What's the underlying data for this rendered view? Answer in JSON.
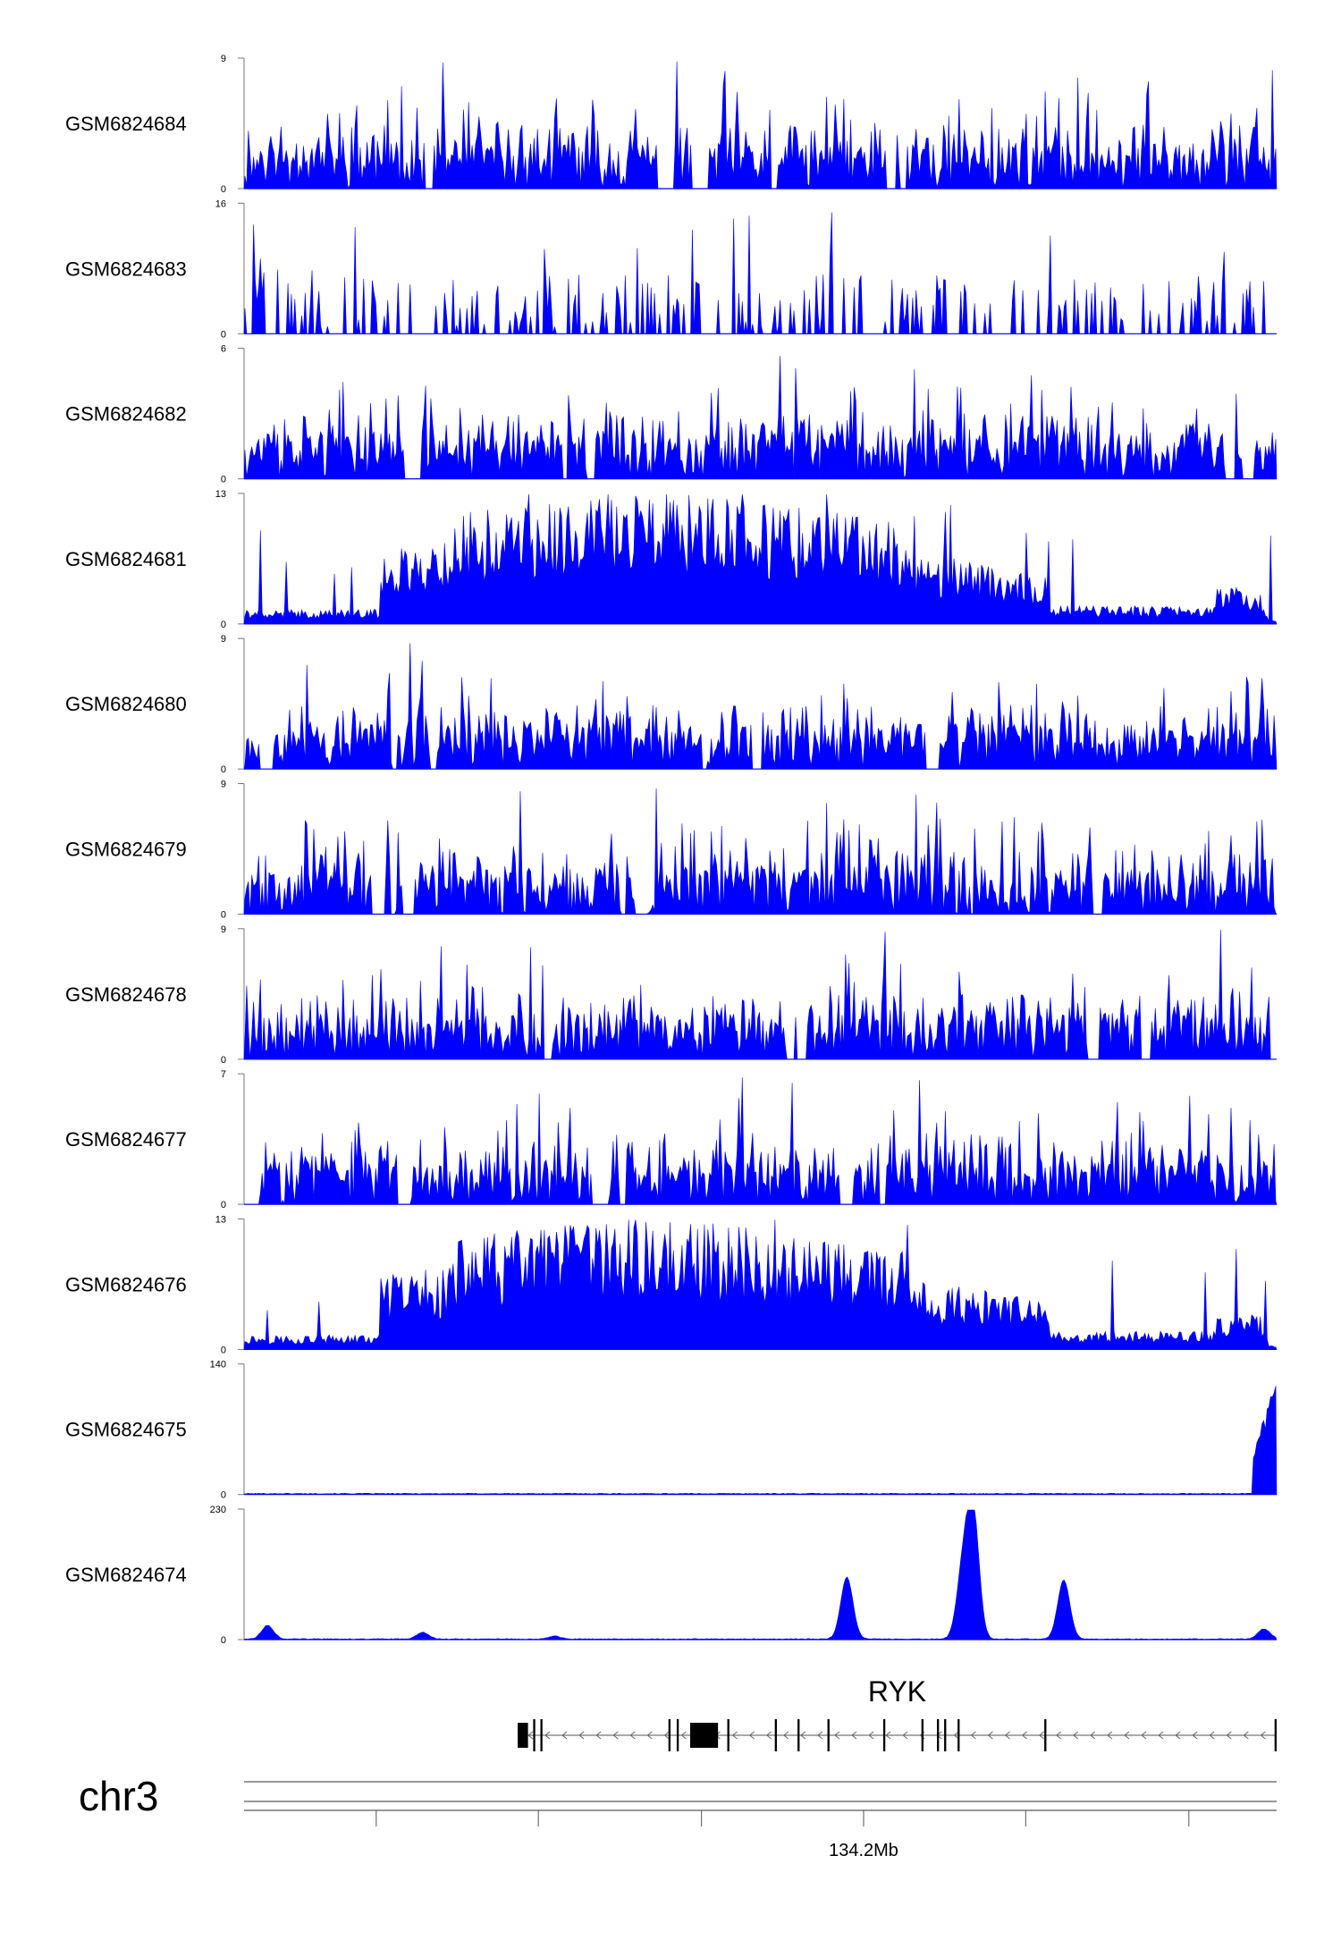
{
  "chart_data": {
    "type": "area",
    "chromosome": "chr3",
    "color": "#0000ff",
    "region_note": "coverage tracks over the RYK locus",
    "tracks": [
      {
        "name": "GSM6824684",
        "ymax": 9,
        "ymin": 0,
        "profile": "noisy",
        "seed": 11
      },
      {
        "name": "GSM6824683",
        "ymax": 16,
        "ymin": 0,
        "profile": "sparse",
        "seed": 23
      },
      {
        "name": "GSM6824682",
        "ymax": 6,
        "ymin": 0,
        "profile": "noisy",
        "seed": 37
      },
      {
        "name": "GSM6824681",
        "ymax": 13,
        "ymin": 0,
        "profile": "broad",
        "seed": 41
      },
      {
        "name": "GSM6824680",
        "ymax": 9,
        "ymin": 0,
        "profile": "noisy",
        "seed": 53
      },
      {
        "name": "GSM6824679",
        "ymax": 9,
        "ymin": 0,
        "profile": "noisy",
        "seed": 67
      },
      {
        "name": "GSM6824678",
        "ymax": 9,
        "ymin": 0,
        "profile": "noisy",
        "seed": 79
      },
      {
        "name": "GSM6824677",
        "ymax": 7,
        "ymin": 0,
        "profile": "noisy",
        "seed": 83
      },
      {
        "name": "GSM6824676",
        "ymax": 13,
        "ymin": 0,
        "profile": "broad",
        "seed": 97
      },
      {
        "name": "GSM6824675",
        "ymax": 140,
        "ymin": 0,
        "profile": "endpeak",
        "seed": 101
      },
      {
        "name": "GSM6824674",
        "ymax": 230,
        "ymin": 0,
        "profile": "peaks",
        "seed": 113,
        "peaks": [
          [
            0.022,
            24
          ],
          [
            0.172,
            12
          ],
          [
            0.3,
            5
          ],
          [
            0.583,
            110
          ],
          [
            0.695,
            115
          ],
          [
            0.705,
            230
          ],
          [
            0.793,
            105
          ],
          [
            0.987,
            18
          ]
        ]
      }
    ],
    "gene": {
      "name": "RYK",
      "strand": "-",
      "start_frac": 0.265,
      "end_frac": 1.0,
      "exons": [
        [
          0.265,
          0.275
        ],
        [
          0.28,
          0.282
        ],
        [
          0.287,
          0.289
        ],
        [
          0.411,
          0.413
        ],
        [
          0.419,
          0.421
        ],
        [
          0.432,
          0.459
        ],
        [
          0.468,
          0.47
        ],
        [
          0.514,
          0.516
        ],
        [
          0.536,
          0.538
        ],
        [
          0.565,
          0.567
        ],
        [
          0.619,
          0.621
        ],
        [
          0.656,
          0.658
        ],
        [
          0.671,
          0.673
        ],
        [
          0.678,
          0.68
        ],
        [
          0.691,
          0.693
        ],
        [
          0.775,
          0.777
        ],
        [
          0.998,
          1.0
        ]
      ]
    },
    "axis": {
      "tick_fracs": [
        0.128,
        0.285,
        0.443,
        0.6,
        0.757,
        0.915
      ],
      "labeled_tick_index": 3,
      "label": "134.2Mb"
    }
  }
}
